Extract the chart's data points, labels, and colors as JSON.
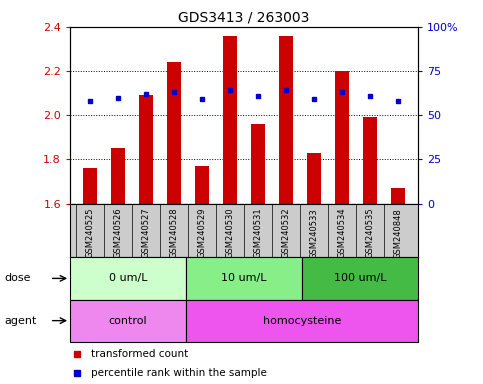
{
  "title": "GDS3413 / 263003",
  "samples": [
    "GSM240525",
    "GSM240526",
    "GSM240527",
    "GSM240528",
    "GSM240529",
    "GSM240530",
    "GSM240531",
    "GSM240532",
    "GSM240533",
    "GSM240534",
    "GSM240535",
    "GSM240848"
  ],
  "transformed_count": [
    1.76,
    1.85,
    2.09,
    2.24,
    1.77,
    2.36,
    1.96,
    2.36,
    1.83,
    2.2,
    1.99,
    1.67
  ],
  "percentile_rank": [
    58,
    60,
    62,
    63,
    59,
    64,
    61,
    64,
    59,
    63,
    61,
    58
  ],
  "bar_color": "#cc0000",
  "dot_color": "#0000cc",
  "ylim_left": [
    1.6,
    2.4
  ],
  "ylim_right": [
    0,
    100
  ],
  "yticks_left": [
    1.6,
    1.8,
    2.0,
    2.2,
    2.4
  ],
  "yticks_right": [
    0,
    25,
    50,
    75,
    100
  ],
  "ytick_labels_right": [
    "0",
    "25",
    "50",
    "75",
    "100%"
  ],
  "dose_groups": [
    {
      "label": "0 um/L",
      "start": 0,
      "end": 4,
      "color": "#ccffcc"
    },
    {
      "label": "10 um/L",
      "start": 4,
      "end": 8,
      "color": "#88ee88"
    },
    {
      "label": "100 um/L",
      "start": 8,
      "end": 12,
      "color": "#44bb44"
    }
  ],
  "agent_groups": [
    {
      "label": "control",
      "start": 0,
      "end": 4,
      "color": "#ee88ee"
    },
    {
      "label": "homocysteine",
      "start": 4,
      "end": 12,
      "color": "#ee55ee"
    }
  ],
  "dose_label": "dose",
  "agent_label": "agent",
  "legend_items": [
    {
      "color": "#cc0000",
      "label": "transformed count"
    },
    {
      "color": "#0000cc",
      "label": "percentile rank within the sample"
    }
  ],
  "sample_bg": "#cccccc",
  "bar_width": 0.5,
  "base_value": 1.6
}
